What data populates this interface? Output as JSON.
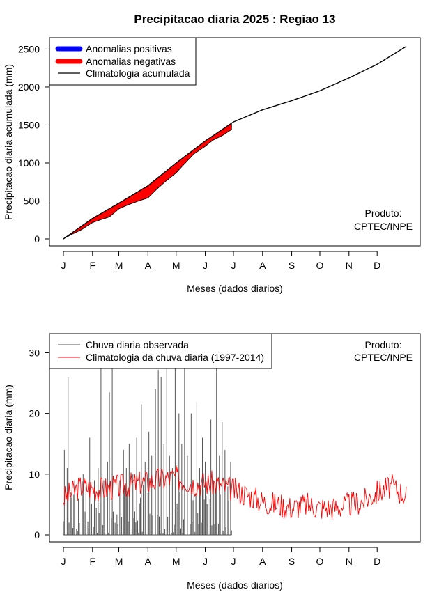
{
  "page": {
    "title": "Precipitacao diaria 2025 : Regiao 13"
  },
  "chart_data": [
    {
      "type": "area",
      "ylabel": "Precipitacao diaria acumulada (mm)",
      "xlabel": "Meses (dados diarios)",
      "x_tick_labels": [
        "J",
        "F",
        "M",
        "A",
        "M",
        "J",
        "J",
        "A",
        "S",
        "O",
        "N",
        "D"
      ],
      "x_tick_days": [
        1,
        32,
        60,
        91,
        121,
        152,
        182,
        213,
        244,
        274,
        305,
        335
      ],
      "xlim": [
        1,
        366
      ],
      "ylim": [
        0,
        2550
      ],
      "y_ticks": [
        0,
        500,
        1000,
        1500,
        2000,
        2500
      ],
      "legend": {
        "position": "top-left",
        "entries": [
          {
            "label": "Anomalias positivas",
            "color": "#0000ff",
            "kind": "thick-line"
          },
          {
            "label": "Anomalias negativas",
            "color": "#ff0000",
            "kind": "thick-line"
          },
          {
            "label": "Climatologia acumulada",
            "color": "#000000",
            "kind": "line"
          }
        ]
      },
      "annotation": [
        "Produto:",
        "CPTEC/INPE"
      ],
      "climatology_cumulative": {
        "days": [
          1,
          32,
          60,
          91,
          121,
          152,
          182,
          213,
          244,
          274,
          305,
          335,
          366
        ],
        "values": [
          0,
          270,
          470,
          700,
          1000,
          1290,
          1540,
          1700,
          1820,
          1950,
          2120,
          2300,
          2535
        ]
      },
      "observed_cumulative": {
        "days": [
          1,
          10,
          20,
          32,
          40,
          50,
          60,
          70,
          80,
          91,
          100,
          110,
          121,
          130,
          140,
          152,
          160,
          170,
          180
        ],
        "values": [
          0,
          60,
          120,
          215,
          250,
          290,
          395,
          450,
          495,
          540,
          650,
          760,
          870,
          990,
          1120,
          1220,
          1300,
          1360,
          1440
        ]
      },
      "colors": {
        "climatology": "#000000",
        "positive": "#0000ff",
        "negative": "#ff0000"
      }
    },
    {
      "type": "line",
      "ylabel": "Precipitacao diaria (mm)",
      "xlabel": "Meses (dados diarios)",
      "x_tick_labels": [
        "J",
        "F",
        "M",
        "A",
        "M",
        "J",
        "J",
        "A",
        "S",
        "O",
        "N",
        "D"
      ],
      "x_tick_days": [
        1,
        32,
        60,
        91,
        121,
        152,
        182,
        213,
        244,
        274,
        305,
        335
      ],
      "xlim": [
        1,
        366
      ],
      "ylim": [
        0,
        32
      ],
      "y_ticks": [
        0,
        10,
        20,
        30
      ],
      "legend": {
        "position": "top-left",
        "entries": [
          {
            "label": "Chuva diaria observada",
            "color": "#555555"
          },
          {
            "label": "Climatologia da chuva diaria (1997-2014)",
            "color": "#ff0000"
          }
        ]
      },
      "annotation": [
        "Produto:",
        "CPTEC/INPE"
      ],
      "observed_last_day": 180,
      "observed_peaks": [
        {
          "day": 2,
          "value": 14
        },
        {
          "day": 5,
          "value": 11
        },
        {
          "day": 6,
          "value": 26
        },
        {
          "day": 9,
          "value": 7
        },
        {
          "day": 13,
          "value": 9
        },
        {
          "day": 17,
          "value": 6
        },
        {
          "day": 22,
          "value": 10
        },
        {
          "day": 25,
          "value": 8
        },
        {
          "day": 29,
          "value": 16
        },
        {
          "day": 34,
          "value": 9
        },
        {
          "day": 38,
          "value": 11
        },
        {
          "day": 41,
          "value": 33
        },
        {
          "day": 44,
          "value": 9
        },
        {
          "day": 48,
          "value": 12
        },
        {
          "day": 50,
          "value": 23.5
        },
        {
          "day": 53,
          "value": 28.7
        },
        {
          "day": 57,
          "value": 11
        },
        {
          "day": 61,
          "value": 9
        },
        {
          "day": 65,
          "value": 14
        },
        {
          "day": 68,
          "value": 11
        },
        {
          "day": 71,
          "value": 15
        },
        {
          "day": 75,
          "value": 10
        },
        {
          "day": 79,
          "value": 16
        },
        {
          "day": 84,
          "value": 21.5
        },
        {
          "day": 88,
          "value": 12
        },
        {
          "day": 92,
          "value": 17
        },
        {
          "day": 95,
          "value": 13
        },
        {
          "day": 99,
          "value": 24
        },
        {
          "day": 102,
          "value": 27.2
        },
        {
          "day": 105,
          "value": 26
        },
        {
          "day": 108,
          "value": 15
        },
        {
          "day": 111,
          "value": 28
        },
        {
          "day": 114,
          "value": 13
        },
        {
          "day": 117,
          "value": 11
        },
        {
          "day": 120,
          "value": 29.4
        },
        {
          "day": 124,
          "value": 20
        },
        {
          "day": 127,
          "value": 15
        },
        {
          "day": 130,
          "value": 28.9
        },
        {
          "day": 133,
          "value": 13
        },
        {
          "day": 137,
          "value": 20
        },
        {
          "day": 140,
          "value": 9
        },
        {
          "day": 143,
          "value": 22
        },
        {
          "day": 146,
          "value": 11
        },
        {
          "day": 149,
          "value": 16
        },
        {
          "day": 152,
          "value": 12
        },
        {
          "day": 155,
          "value": 10
        },
        {
          "day": 158,
          "value": 19
        },
        {
          "day": 161,
          "value": 9
        },
        {
          "day": 164,
          "value": 29
        },
        {
          "day": 167,
          "value": 13
        },
        {
          "day": 170,
          "value": 18.6
        },
        {
          "day": 173,
          "value": 14
        },
        {
          "day": 176,
          "value": 8
        },
        {
          "day": 179,
          "value": 12
        }
      ],
      "climatology_daily_profile": {
        "days": [
          1,
          20,
          40,
          60,
          80,
          100,
          120,
          140,
          160,
          180,
          200,
          213,
          230,
          244,
          260,
          274,
          290,
          305,
          320,
          335,
          350,
          366
        ],
        "values": [
          6,
          8,
          7.5,
          8,
          8.5,
          9,
          9.5,
          8.5,
          8.5,
          7.5,
          6.5,
          5.5,
          5,
          4.5,
          5,
          4.5,
          4.5,
          5,
          5.5,
          7,
          8,
          6.5
        ]
      },
      "colors": {
        "observed": "#555555",
        "climatology": "#ff0000"
      }
    }
  ]
}
